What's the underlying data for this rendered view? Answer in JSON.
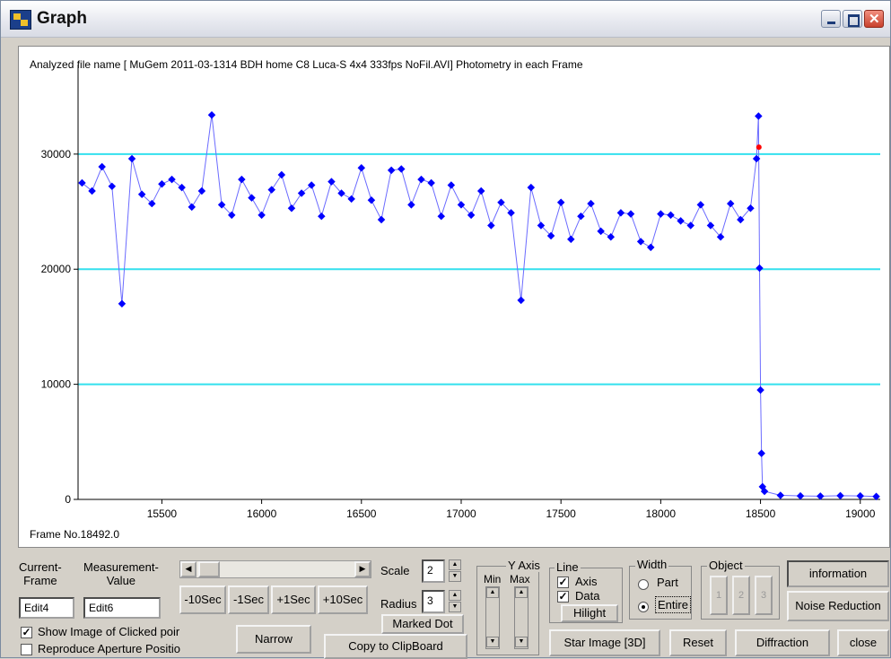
{
  "window": {
    "title": "Graph",
    "controls": [
      "minimize-icon",
      "maximize-icon",
      "close-icon"
    ]
  },
  "plot": {
    "header": "Analyzed file name [ MuGem 2011-03-1314 BDH home C8 Luca-S 4x4 333fps NoFil.AVI]   Photometry in each Frame",
    "frame_label": "Frame No.18492.0"
  },
  "chart_data": {
    "type": "scatter",
    "title": "",
    "xlim": [
      15080,
      19100
    ],
    "ylim": [
      0,
      37000
    ],
    "xticks": [
      15500,
      16000,
      16500,
      17000,
      17500,
      18000,
      18500,
      19000
    ],
    "yticks": [
      0,
      10000,
      20000,
      30000
    ],
    "xtick_labels": [
      "15500",
      "16000",
      "16500",
      "17000",
      "17500",
      "18000",
      "18500",
      "19000"
    ],
    "ytick_labels": [
      "0",
      "10000",
      "20000",
      "30000"
    ],
    "gridlines_y": [
      10000,
      20000,
      30000
    ],
    "colors": {
      "points": "#0000ff",
      "line": "#6b6bff",
      "grid": "#33e0ee",
      "marked": "#ff0000"
    },
    "marked_point": {
      "x": 18492,
      "y": 30600
    },
    "series": [
      {
        "x": [
          15100,
          15150,
          15200,
          15250,
          15300,
          15350,
          15400,
          15450,
          15500,
          15550,
          15600,
          15650,
          15700,
          15750,
          15800,
          15850,
          15900,
          15950,
          16000,
          16050,
          16100,
          16150,
          16200,
          16250,
          16300,
          16350,
          16400,
          16450,
          16500,
          16550,
          16600,
          16650,
          16700,
          16750,
          16800,
          16850,
          16900,
          16950,
          17000,
          17050,
          17100,
          17150,
          17200,
          17250,
          17300,
          17350,
          17400,
          17450,
          17500,
          17550,
          17600,
          17650,
          17700,
          17750,
          17800,
          17850,
          17900,
          17950,
          18000,
          18050,
          18100,
          18150,
          18200,
          18250,
          18300,
          18350,
          18400,
          18450,
          18480,
          18490,
          18495,
          18500,
          18505,
          18510,
          18520,
          18600,
          18700,
          18800,
          18900,
          19000,
          19080
        ],
        "y": [
          27500,
          26800,
          28900,
          27200,
          17000,
          29600,
          26500,
          25700,
          27400,
          27800,
          27100,
          25400,
          26800,
          33400,
          25600,
          24700,
          27800,
          26200,
          24700,
          26900,
          28200,
          25300,
          26600,
          27300,
          24600,
          27600,
          26600,
          26100,
          28800,
          26000,
          24300,
          28600,
          28700,
          25600,
          27800,
          27500,
          24600,
          27300,
          25600,
          24700,
          26800,
          23800,
          25800,
          24900,
          17300,
          27100,
          23800,
          22900,
          25800,
          22600,
          24600,
          25700,
          23300,
          22800,
          24900,
          24800,
          22400,
          21900,
          24800,
          24700,
          24200,
          23800,
          25600,
          23800,
          22800,
          25700,
          24300,
          25300,
          29600,
          33300,
          20100,
          9500,
          4000,
          1100,
          700,
          350,
          300,
          280,
          320,
          300,
          250
        ]
      }
    ]
  },
  "controls": {
    "current_frame_label": "Current-\nFrame",
    "measurement_value_label": "Measurement-\nValue",
    "edit_frame": "Edit4",
    "edit_value": "Edit6",
    "btn_minus10": "-10Sec",
    "btn_minus1": "-1Sec",
    "btn_plus1": "+1Sec",
    "btn_plus10": "+10Sec",
    "scale_label": "Scale",
    "scale_value": "2",
    "radius_label": "Radius",
    "radius_value": "3",
    "marked_dot": "Marked Dot",
    "show_image_label": "Show Image of Clicked poir",
    "reproduce_label": "Reproduce Aperture Positio",
    "narrow": "Narrow",
    "copy_clipboard": "Copy to ClipBoard",
    "yaxis_group": "Y Axis",
    "yaxis_min": "Min",
    "yaxis_max": "Max",
    "line_group": "Line",
    "line_axis": "Axis",
    "line_data": "Data",
    "hilight": "Hilight",
    "width_group": "Width",
    "width_part": "Part",
    "width_entire": "Entire",
    "object_group": "Object",
    "object_btns": [
      "1",
      "2",
      "3"
    ],
    "information": "information",
    "noise_reduction": "Noise Reduction",
    "star_image": "Star Image [3D]",
    "reset": "Reset",
    "diffraction": "Diffraction",
    "close": "close"
  }
}
